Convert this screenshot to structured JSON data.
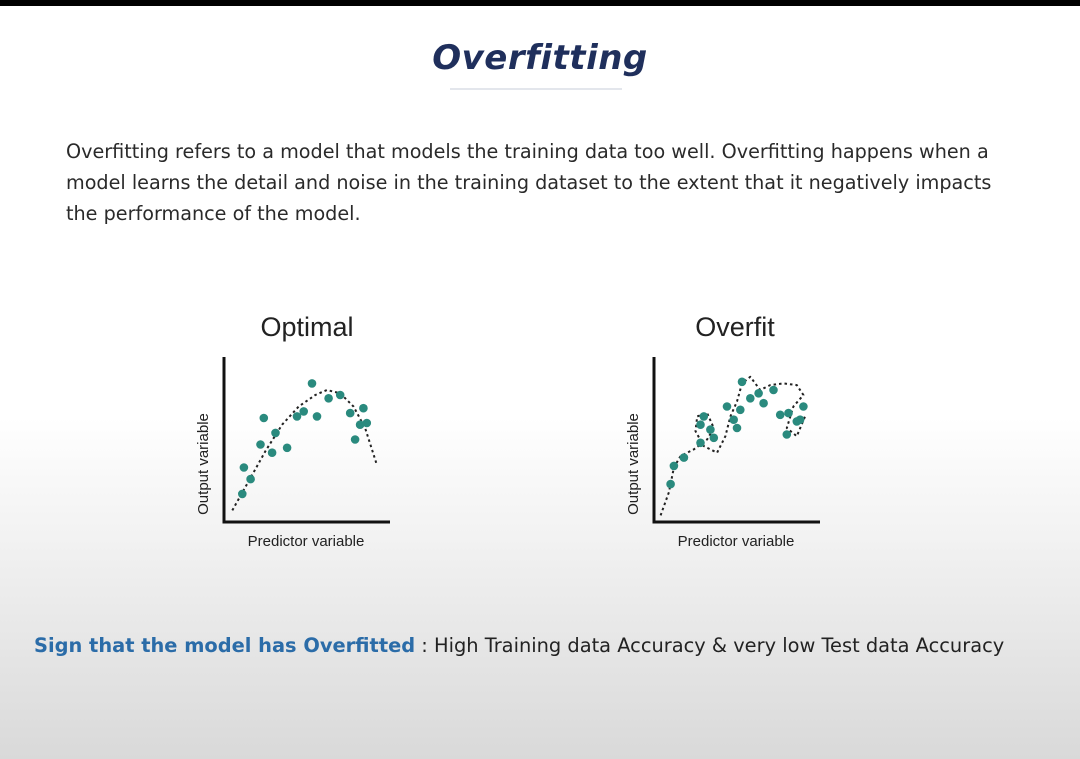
{
  "title": "Overfitting",
  "description": "Overfitting refers to a model that models the training data too well. Overfitting happens when a model learns the detail and noise in the training dataset to the extent that it negatively impacts the performance of the model.",
  "colors": {
    "title": "#1f2f5c",
    "accent": "#2b6ca8",
    "point": "#2a8a7e"
  },
  "chart_data": [
    {
      "type": "scatter",
      "title": "Optimal",
      "xlabel": "Predictor variable",
      "ylabel": "Output variable",
      "xlim": [
        0,
        100
      ],
      "ylim": [
        0,
        100
      ],
      "points": [
        [
          11,
          17
        ],
        [
          12,
          33
        ],
        [
          16,
          26
        ],
        [
          22,
          47
        ],
        [
          24,
          63
        ],
        [
          29,
          42
        ],
        [
          31,
          54
        ],
        [
          38,
          45
        ],
        [
          44,
          64
        ],
        [
          48,
          67
        ],
        [
          53,
          84
        ],
        [
          56,
          64
        ],
        [
          63,
          75
        ],
        [
          70,
          77
        ],
        [
          76,
          66
        ],
        [
          79,
          50
        ],
        [
          82,
          59
        ],
        [
          84,
          69
        ],
        [
          86,
          60
        ]
      ],
      "fit_line": [
        [
          5,
          7
        ],
        [
          15,
          25
        ],
        [
          25,
          43
        ],
        [
          35,
          59
        ],
        [
          45,
          70
        ],
        [
          55,
          77
        ],
        [
          62,
          80
        ],
        [
          70,
          78
        ],
        [
          78,
          70
        ],
        [
          85,
          57
        ],
        [
          92,
          35
        ]
      ]
    },
    {
      "type": "scatter",
      "title": "Overfit",
      "xlabel": "Predictor variable",
      "ylabel": "Output variable",
      "xlim": [
        0,
        100
      ],
      "ylim": [
        0,
        100
      ],
      "points": [
        [
          10,
          23
        ],
        [
          12,
          34
        ],
        [
          18,
          39
        ],
        [
          28,
          48
        ],
        [
          28,
          59
        ],
        [
          30,
          64
        ],
        [
          34,
          56
        ],
        [
          36,
          51
        ],
        [
          44,
          70
        ],
        [
          48,
          62
        ],
        [
          50,
          57
        ],
        [
          52,
          68
        ],
        [
          53,
          85
        ],
        [
          58,
          75
        ],
        [
          63,
          78
        ],
        [
          66,
          72
        ],
        [
          72,
          80
        ],
        [
          76,
          65
        ],
        [
          81,
          66
        ],
        [
          80,
          53
        ],
        [
          86,
          61
        ],
        [
          88,
          62
        ],
        [
          90,
          70
        ]
      ],
      "fit_line": [
        [
          4,
          4
        ],
        [
          9,
          18
        ],
        [
          12,
          33
        ],
        [
          16,
          40
        ],
        [
          24,
          44
        ],
        [
          32,
          50
        ],
        [
          36,
          57
        ],
        [
          32,
          66
        ],
        [
          26,
          64
        ],
        [
          25,
          55
        ],
        [
          30,
          46
        ],
        [
          38,
          42
        ],
        [
          43,
          52
        ],
        [
          46,
          64
        ],
        [
          50,
          73
        ],
        [
          53,
          84
        ],
        [
          58,
          88
        ],
        [
          64,
          80
        ],
        [
          70,
          83
        ],
        [
          78,
          84
        ],
        [
          86,
          83
        ],
        [
          90,
          77
        ],
        [
          84,
          70
        ],
        [
          80,
          57
        ],
        [
          86,
          52
        ],
        [
          91,
          64
        ]
      ]
    }
  ],
  "footer": {
    "lead": "Sign that the model has Overfitted",
    "text": " : High Training data Accuracy & very low Test data Accuracy"
  }
}
